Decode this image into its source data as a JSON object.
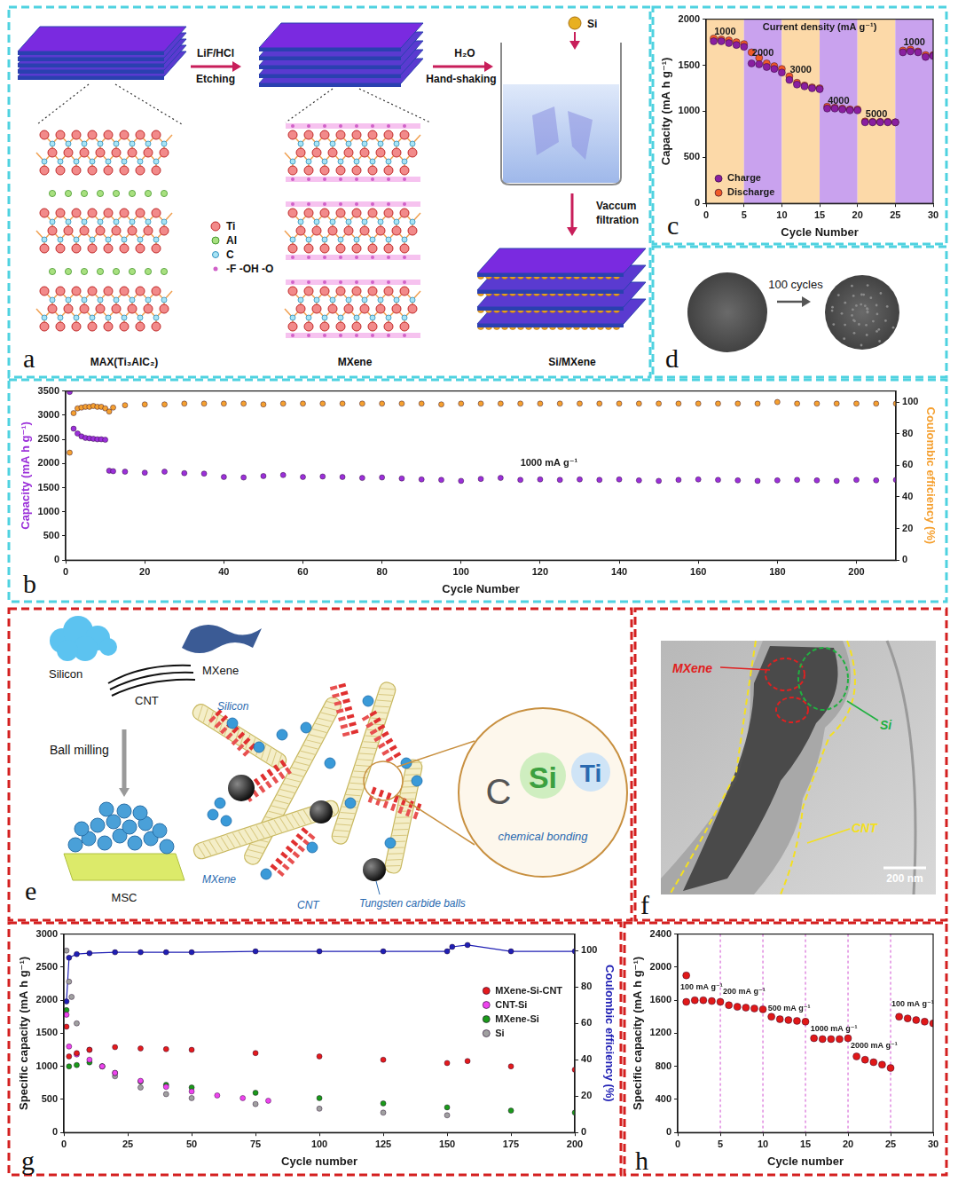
{
  "chart_data": [
    {
      "panel_label": "b",
      "type": "scatter",
      "x_label": "Cycle Number",
      "y_label": "Capacity (mA h g⁻¹)",
      "y2_label": "Coulombic efficiency (%)",
      "xlim": [
        0,
        210
      ],
      "xticks": [
        0,
        20,
        40,
        60,
        80,
        100,
        120,
        140,
        160,
        180,
        200
      ],
      "ylim": [
        0,
        3500
      ],
      "yticks": [
        0,
        500,
        1000,
        1500,
        2000,
        2500,
        3000,
        3500
      ],
      "y2lim": [
        0,
        107
      ],
      "y2ticks": [
        0,
        20,
        40,
        60,
        80,
        100
      ],
      "grid": false,
      "annotations": [
        {
          "text": "1000 mA g⁻¹",
          "x": 115,
          "y": 1950
        }
      ],
      "x": [
        1,
        2,
        3,
        4,
        5,
        6,
        7,
        8,
        9,
        10,
        11,
        12,
        15,
        20,
        25,
        30,
        35,
        40,
        45,
        50,
        55,
        60,
        65,
        70,
        75,
        80,
        85,
        90,
        95,
        100,
        105,
        110,
        115,
        120,
        125,
        130,
        135,
        140,
        145,
        150,
        155,
        160,
        165,
        170,
        175,
        180,
        185,
        190,
        195,
        200,
        205,
        210
      ],
      "series": [
        {
          "color": "#9b30d9",
          "marker": "circle",
          "values": [
            3480,
            2720,
            2620,
            2560,
            2530,
            2520,
            2510,
            2500,
            2500,
            2490,
            1850,
            1840,
            1830,
            1810,
            1830,
            1800,
            1790,
            1720,
            1710,
            1740,
            1760,
            1720,
            1730,
            1720,
            1700,
            1710,
            1690,
            1670,
            1660,
            1640,
            1680,
            1700,
            1660,
            1670,
            1660,
            1670,
            1660,
            1670,
            1650,
            1640,
            1660,
            1670,
            1660,
            1650,
            1640,
            1650,
            1660,
            1650,
            1640,
            1660,
            1650,
            1660
          ]
        },
        {
          "color": "#f5a030",
          "marker": "circle",
          "axis": "y2",
          "values": [
            68,
            93,
            96,
            96.5,
            97,
            97,
            97.5,
            97,
            97,
            96,
            94,
            96.5,
            98,
            98.5,
            98.5,
            99,
            99,
            99,
            99,
            98.5,
            99,
            99,
            99,
            99,
            99,
            99,
            99,
            99,
            98.5,
            99,
            99,
            99,
            99,
            99,
            99,
            99,
            99,
            99,
            99,
            99,
            99,
            99,
            99,
            99,
            99,
            100,
            99,
            99,
            99,
            99,
            99,
            99
          ]
        }
      ]
    },
    {
      "panel_label": "c",
      "type": "scatter",
      "title": "Current density (mA g⁻¹)",
      "x_label": "Cycle Number",
      "y_label": "Capacity (mA h g⁻¹)",
      "xlim": [
        0,
        30
      ],
      "xticks": [
        0,
        5,
        10,
        15,
        20,
        25,
        30
      ],
      "ylim": [
        0,
        2000
      ],
      "yticks": [
        0,
        500,
        1000,
        1500,
        2000
      ],
      "grid": false,
      "legend": "bottom left",
      "regions": [
        {
          "from": 0,
          "to": 5,
          "label": "1000",
          "y": 1830,
          "color": "#fcd9a8"
        },
        {
          "from": 5,
          "to": 10,
          "label": "2000",
          "y": 1600,
          "color": "#c9a2ee"
        },
        {
          "from": 10,
          "to": 15,
          "label": "3000",
          "y": 1420,
          "color": "#fcd9a8"
        },
        {
          "from": 15,
          "to": 20,
          "label": "4000",
          "y": 1080,
          "color": "#c9a2ee"
        },
        {
          "from": 20,
          "to": 25,
          "label": "5000",
          "y": 940,
          "color": "#fcd9a8"
        },
        {
          "from": 25,
          "to": 30,
          "label": "1000",
          "y": 1720,
          "color": "#c9a2ee"
        }
      ],
      "x": [
        1,
        2,
        3,
        4,
        5,
        6,
        7,
        8,
        9,
        10,
        11,
        12,
        13,
        14,
        15,
        16,
        17,
        18,
        19,
        20,
        21,
        22,
        23,
        24,
        25,
        26,
        27,
        28,
        29,
        30
      ],
      "series": [
        {
          "name": "Charge",
          "color": "#8a1fa0",
          "marker": "circle",
          "values": [
            1760,
            1760,
            1740,
            1720,
            1700,
            1520,
            1510,
            1480,
            1460,
            1420,
            1340,
            1290,
            1270,
            1250,
            1240,
            1030,
            1030,
            1020,
            1010,
            1010,
            880,
            880,
            880,
            880,
            880,
            1640,
            1650,
            1640,
            1590,
            1600
          ]
        },
        {
          "name": "Discharge",
          "color": "#f05a28",
          "marker": "circle",
          "values": [
            1790,
            1780,
            1770,
            1750,
            1730,
            1640,
            1580,
            1520,
            1490,
            1460,
            1380,
            1310,
            1280,
            1260,
            1250,
            1050,
            1040,
            1030,
            1020,
            1020,
            890,
            885,
            885,
            885,
            880,
            1660,
            1670,
            1650,
            1610,
            1610
          ]
        }
      ]
    },
    {
      "panel_label": "g",
      "type": "scatter",
      "x_label": "Cycle number",
      "y_label": "Specific capacity (mA h g⁻¹)",
      "y2_label": "Coulombic efficiency (%)",
      "xlim": [
        0,
        200
      ],
      "xticks": [
        0,
        25,
        50,
        75,
        100,
        125,
        150,
        175,
        200
      ],
      "ylim": [
        0,
        3000
      ],
      "yticks": [
        0,
        500,
        1000,
        1500,
        2000,
        2500,
        3000
      ],
      "y2lim": [
        0,
        109
      ],
      "y2ticks": [
        0,
        20,
        40,
        60,
        80,
        100
      ],
      "grid": false,
      "legend": "right",
      "series": [
        {
          "name": "MXene-Si-CNT",
          "color": "#e41a1c",
          "marker": "circle",
          "x": [
            1,
            2,
            5,
            10,
            20,
            30,
            40,
            50,
            75,
            100,
            125,
            150,
            158,
            175,
            200
          ],
          "values": [
            1600,
            1150,
            1200,
            1250,
            1290,
            1270,
            1260,
            1250,
            1200,
            1150,
            1100,
            1050,
            1080,
            1000,
            950
          ]
        },
        {
          "name": "CNT-Si",
          "color": "#ee44ee",
          "marker": "circle",
          "x": [
            1,
            2,
            5,
            10,
            15,
            20,
            30,
            40,
            50,
            60,
            70,
            80
          ],
          "values": [
            1780,
            1300,
            1180,
            1100,
            1000,
            900,
            780,
            690,
            620,
            560,
            520,
            480
          ]
        },
        {
          "name": "MXene-Si",
          "color": "#1a9a1a",
          "marker": "circle",
          "x": [
            1,
            2,
            5,
            10,
            15,
            20,
            30,
            40,
            50,
            75,
            100,
            125,
            150,
            175,
            200
          ],
          "values": [
            1850,
            1000,
            1020,
            1060,
            1000,
            900,
            770,
            720,
            680,
            600,
            520,
            440,
            380,
            330,
            300
          ]
        },
        {
          "name": "Si",
          "color": "#a0a0a0",
          "marker": "circle",
          "x": [
            1,
            2,
            3,
            5,
            10,
            15,
            20,
            30,
            40,
            50,
            75,
            100,
            125,
            150
          ],
          "values": [
            2750,
            2280,
            2050,
            1650,
            1250,
            1000,
            850,
            680,
            580,
            520,
            430,
            360,
            300,
            260
          ]
        },
        {
          "color": "#1f1fb4",
          "marker": "circle",
          "line_style": "solid",
          "axis": "y2",
          "x": [
            1,
            2,
            5,
            10,
            20,
            30,
            40,
            50,
            75,
            100,
            125,
            150,
            152,
            158,
            175,
            200
          ],
          "values": [
            72,
            96,
            98,
            98.5,
            99,
            99,
            99,
            99,
            99.5,
            99.5,
            99.5,
            99.5,
            102,
            103,
            99.5,
            99.5
          ]
        }
      ]
    },
    {
      "panel_label": "h",
      "type": "scatter",
      "x_label": "Cycle number",
      "y_label": "Specific capacity (mA h g⁻¹)",
      "xlim": [
        0,
        30
      ],
      "xticks": [
        0,
        5,
        10,
        15,
        20,
        25,
        30
      ],
      "ylim": [
        0,
        2400
      ],
      "yticks": [
        0,
        400,
        800,
        1200,
        1600,
        2000,
        2400
      ],
      "grid": false,
      "dividers": [
        5,
        10,
        15,
        20,
        25
      ],
      "annotations": [
        {
          "text": "100 mA g⁻¹",
          "x": 0.3,
          "y": 1730
        },
        {
          "text": "200 mA g⁻¹",
          "x": 5.3,
          "y": 1680
        },
        {
          "text": "500 mA g⁻¹",
          "x": 10.6,
          "y": 1470
        },
        {
          "text": "1000 mA g⁻¹",
          "x": 15.6,
          "y": 1230
        },
        {
          "text": "2000 mA g⁻¹",
          "x": 20.3,
          "y": 1020
        },
        {
          "text": "100 mA g⁻¹",
          "x": 25.1,
          "y": 1530
        }
      ],
      "series": [
        {
          "color": "#e01818",
          "marker": "circle",
          "x": [
            1,
            1,
            2,
            3,
            4,
            5,
            6,
            7,
            8,
            9,
            10,
            11,
            12,
            13,
            14,
            15,
            16,
            17,
            18,
            19,
            20,
            21,
            22,
            23,
            24,
            25,
            26,
            27,
            28,
            29,
            30
          ],
          "values": [
            1900,
            1580,
            1600,
            1600,
            1590,
            1580,
            1540,
            1520,
            1510,
            1500,
            1490,
            1400,
            1370,
            1360,
            1350,
            1340,
            1140,
            1130,
            1130,
            1130,
            1140,
            920,
            880,
            850,
            820,
            780,
            1400,
            1380,
            1360,
            1340,
            1320
          ]
        }
      ]
    }
  ],
  "panels": {
    "a": {
      "label": "a",
      "steps": [
        {
          "top": "LiF/HCl",
          "bottom": "Etching"
        },
        {
          "top": "H₂O",
          "bottom": "Hand-shaking"
        }
      ],
      "si": "Si",
      "filtration": [
        "Vaccum",
        "filtration"
      ],
      "atoms": [
        "Ti",
        "Al",
        "C",
        "-F -OH -O"
      ],
      "captions": [
        "MAX(Ti₃AlC₂)",
        "MXene",
        "Si/MXene"
      ]
    },
    "d": {
      "label": "d",
      "arrow_text": "100 cycles"
    },
    "e": {
      "label": "e",
      "inputs": [
        "Silicon",
        "CNT",
        "MXene"
      ],
      "process": "Ball milling",
      "product": "MSC",
      "parts": [
        "Silicon",
        "MXene",
        "CNT",
        "Tungsten carbide balls"
      ],
      "bond_elements": [
        "C",
        "Si",
        "Ti"
      ],
      "bond_text": "chemical bonding"
    },
    "f": {
      "label": "f",
      "labels": [
        "MXene",
        "Si",
        "CNT"
      ],
      "scale_bar": "200 nm"
    }
  }
}
